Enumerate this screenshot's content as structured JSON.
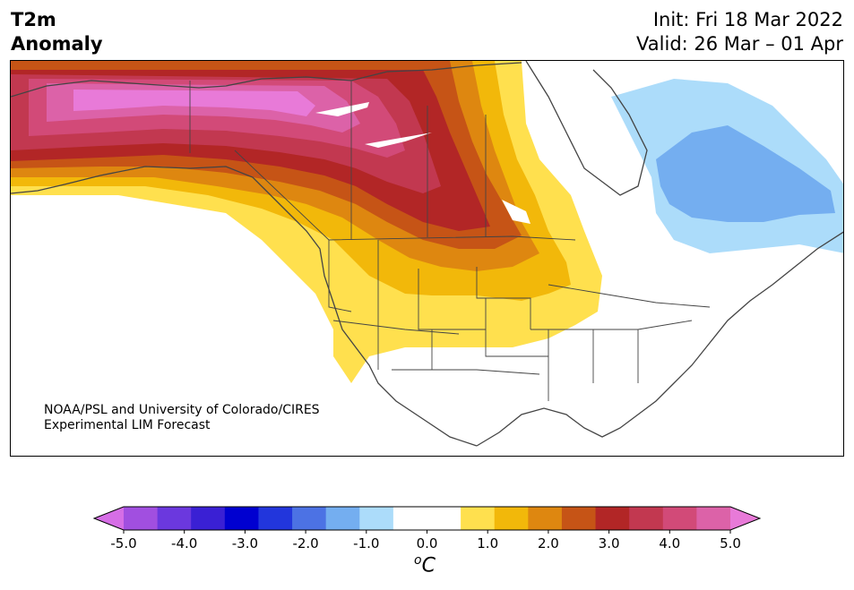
{
  "header": {
    "variable": "T2m",
    "type": "Anomaly",
    "init": "Init: Fri 18 Mar 2022",
    "valid": "Valid: 26 Mar – 01 Apr"
  },
  "credit": {
    "line1": "NOAA/PSL and University of Colorado/CIRES",
    "line2": "Experimental LIM Forecast"
  },
  "colorbar": {
    "ticks": [
      "-5.0",
      "-4.0",
      "-3.0",
      "-2.0",
      "-1.0",
      "0.0",
      "1.0",
      "2.0",
      "3.0",
      "4.0",
      "5.0"
    ],
    "unit": "C",
    "unit_sup": "o",
    "colors": [
      "#d66ee6",
      "#a14fe0",
      "#6b38de",
      "#3a20d4",
      "#0000d0",
      "#2236dc",
      "#4c72e4",
      "#74aef0",
      "#acdcfa",
      "#ffffff",
      "#ffffff",
      "#ffe04e",
      "#f2b80a",
      "#de8710",
      "#c65416",
      "#b22626",
      "#c23850",
      "#d24a78",
      "#dc62a8",
      "#e87ad8"
    ]
  },
  "map": {
    "region": "North America",
    "colors": {
      "warm_1": "#ffe04e",
      "warm_2": "#f2b80a",
      "warm_3": "#de8710",
      "warm_4": "#c65416",
      "warm_5": "#b22626",
      "warm_6": "#c23850",
      "warm_7": "#d24a78",
      "warm_8": "#dc62a8",
      "warm_9": "#e87ad8",
      "cool_1": "#acdcfa",
      "cool_2": "#74aef0",
      "line": "#444444"
    }
  }
}
